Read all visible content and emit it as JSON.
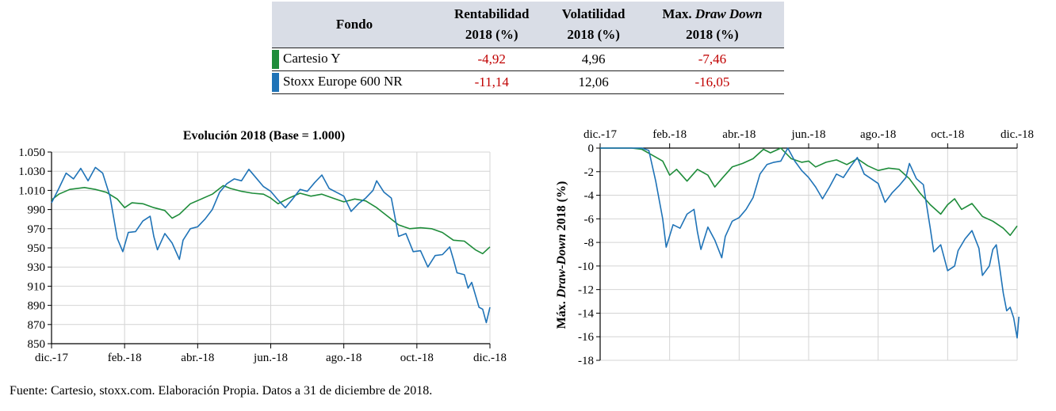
{
  "table": {
    "headers": {
      "fund": "Fondo",
      "return_l1": "Rentabilidad",
      "return_l2": "2018 (%)",
      "vol_l1": "Volatilidad",
      "vol_l2": "2018 (%)",
      "dd_l1a": "Max. ",
      "dd_l1b": "Draw Down",
      "dd_l2": "2018 (%)"
    },
    "rows": [
      {
        "fund": "Cartesio Y",
        "color": "#1e8c3a",
        "return": "-4,92",
        "volatility": "4,96",
        "max_drawdown": "-7,46"
      },
      {
        "fund": "Stoxx Europe 600 NR",
        "color": "#1f73b7",
        "return": "-11,14",
        "volatility": "12,06",
        "max_drawdown": "-16,05"
      }
    ]
  },
  "source_note": "Fuente: Cartesio, stoxx.com. Elaboración Propia. Datos a 31 de diciembre de 2018.",
  "chart_data": [
    {
      "type": "line",
      "title": "Evolución  2018 (Base = 1.000)",
      "xlabel": "",
      "ylabel": "",
      "ylim": [
        850,
        1050
      ],
      "yticks": [
        "850",
        "870",
        "890",
        "910",
        "930",
        "950",
        "970",
        "990",
        "1.010",
        "1.030",
        "1.050"
      ],
      "xlim": [
        0,
        12
      ],
      "xticks": [
        "dic.-17",
        "feb.-18",
        "abr.-18",
        "jun.-18",
        "ago.-18",
        "oct.-18",
        "dic.-18"
      ],
      "grid": true,
      "series": [
        {
          "name": "Cartesio Y",
          "color": "#1e8c3a",
          "points": [
            [
              0,
              1000
            ],
            [
              0.2,
              1006
            ],
            [
              0.5,
              1011
            ],
            [
              0.9,
              1013
            ],
            [
              1.2,
              1011
            ],
            [
              1.5,
              1008
            ],
            [
              1.8,
              1001
            ],
            [
              2.0,
              992
            ],
            [
              2.2,
              997
            ],
            [
              2.5,
              996
            ],
            [
              2.8,
              992
            ],
            [
              3.1,
              989
            ],
            [
              3.3,
              981
            ],
            [
              3.5,
              985
            ],
            [
              3.8,
              996
            ],
            [
              4.1,
              1001
            ],
            [
              4.4,
              1006
            ],
            [
              4.7,
              1015
            ],
            [
              4.9,
              1012
            ],
            [
              5.2,
              1009
            ],
            [
              5.5,
              1007
            ],
            [
              5.8,
              1006
            ],
            [
              6.0,
              1002
            ],
            [
              6.2,
              996
            ],
            [
              6.5,
              1002
            ],
            [
              6.8,
              1007
            ],
            [
              7.1,
              1004
            ],
            [
              7.4,
              1006
            ],
            [
              7.7,
              1002
            ],
            [
              8.0,
              998
            ],
            [
              8.3,
              1001
            ],
            [
              8.6,
              999
            ],
            [
              8.9,
              992
            ],
            [
              9.2,
              983
            ],
            [
              9.5,
              974
            ],
            [
              9.8,
              970
            ],
            [
              10.1,
              971
            ],
            [
              10.4,
              970
            ],
            [
              10.7,
              966
            ],
            [
              11.0,
              958
            ],
            [
              11.3,
              957
            ],
            [
              11.6,
              948
            ],
            [
              11.8,
              944
            ],
            [
              12.0,
              951
            ]
          ]
        },
        {
          "name": "Stoxx Europe 600 NR",
          "color": "#1f73b7",
          "points": [
            [
              0,
              997
            ],
            [
              0.2,
              1012
            ],
            [
              0.4,
              1028
            ],
            [
              0.6,
              1022
            ],
            [
              0.8,
              1033
            ],
            [
              1.0,
              1020
            ],
            [
              1.2,
              1034
            ],
            [
              1.4,
              1028
            ],
            [
              1.6,
              1004
            ],
            [
              1.8,
              960
            ],
            [
              1.95,
              946
            ],
            [
              2.1,
              966
            ],
            [
              2.3,
              967
            ],
            [
              2.5,
              978
            ],
            [
              2.7,
              983
            ],
            [
              2.8,
              962
            ],
            [
              2.9,
              948
            ],
            [
              3.1,
              965
            ],
            [
              3.3,
              955
            ],
            [
              3.5,
              938
            ],
            [
              3.6,
              958
            ],
            [
              3.8,
              970
            ],
            [
              4.0,
              972
            ],
            [
              4.2,
              980
            ],
            [
              4.4,
              990
            ],
            [
              4.6,
              1008
            ],
            [
              4.8,
              1017
            ],
            [
              5.0,
              1022
            ],
            [
              5.2,
              1020
            ],
            [
              5.4,
              1032
            ],
            [
              5.6,
              1023
            ],
            [
              5.8,
              1014
            ],
            [
              6.0,
              1009
            ],
            [
              6.2,
              1000
            ],
            [
              6.4,
              992
            ],
            [
              6.6,
              1001
            ],
            [
              6.8,
              1011
            ],
            [
              7.0,
              1009
            ],
            [
              7.2,
              1018
            ],
            [
              7.4,
              1026
            ],
            [
              7.6,
              1012
            ],
            [
              7.8,
              1008
            ],
            [
              8.0,
              1004
            ],
            [
              8.2,
              988
            ],
            [
              8.4,
              996
            ],
            [
              8.6,
              1002
            ],
            [
              8.8,
              1010
            ],
            [
              8.9,
              1020
            ],
            [
              9.1,
              1008
            ],
            [
              9.3,
              1002
            ],
            [
              9.5,
              962
            ],
            [
              9.7,
              965
            ],
            [
              9.9,
              946
            ],
            [
              10.1,
              947
            ],
            [
              10.3,
              930
            ],
            [
              10.5,
              942
            ],
            [
              10.7,
              943
            ],
            [
              10.9,
              951
            ],
            [
              11.0,
              938
            ],
            [
              11.1,
              924
            ],
            [
              11.3,
              922
            ],
            [
              11.4,
              908
            ],
            [
              11.5,
              914
            ],
            [
              11.7,
              888
            ],
            [
              11.8,
              886
            ],
            [
              11.9,
              872
            ],
            [
              12.0,
              888
            ]
          ]
        }
      ]
    },
    {
      "type": "line",
      "title": "",
      "xlabel": "",
      "ylabel_a": "Máx. ",
      "ylabel_b": "Draw-Down",
      "ylabel_c": " 2018 (%)",
      "ylim": [
        -18,
        0
      ],
      "yticks": [
        "0",
        "-2",
        "-4",
        "-6",
        "-8",
        "-10",
        "-12",
        "-14",
        "-16",
        "-18"
      ],
      "xlim": [
        0,
        12
      ],
      "xticks": [
        "dic.-17",
        "feb.-18",
        "abr.-18",
        "jun.-18",
        "ago.-18",
        "oct.-18",
        "dic.-18"
      ],
      "xaxis_position": "top",
      "grid": true,
      "series": [
        {
          "name": "Cartesio Y",
          "color": "#1e8c3a",
          "points": [
            [
              0,
              0
            ],
            [
              0.5,
              0
            ],
            [
              0.9,
              0
            ],
            [
              1.2,
              -0.1
            ],
            [
              1.5,
              -0.6
            ],
            [
              1.8,
              -1.1
            ],
            [
              2.0,
              -2.3
            ],
            [
              2.2,
              -1.8
            ],
            [
              2.5,
              -2.8
            ],
            [
              2.8,
              -1.8
            ],
            [
              3.1,
              -2.3
            ],
            [
              3.3,
              -3.3
            ],
            [
              3.5,
              -2.6
            ],
            [
              3.8,
              -1.6
            ],
            [
              4.1,
              -1.3
            ],
            [
              4.4,
              -0.9
            ],
            [
              4.7,
              -0.1
            ],
            [
              4.9,
              -0.4
            ],
            [
              5.2,
              0
            ],
            [
              5.5,
              -0.9
            ],
            [
              5.8,
              -1.2
            ],
            [
              6.0,
              -1.1
            ],
            [
              6.2,
              -1.6
            ],
            [
              6.5,
              -1.2
            ],
            [
              6.8,
              -1.0
            ],
            [
              7.1,
              -1.4
            ],
            [
              7.4,
              -0.9
            ],
            [
              7.7,
              -1.5
            ],
            [
              8.0,
              -1.9
            ],
            [
              8.3,
              -1.7
            ],
            [
              8.6,
              -1.8
            ],
            [
              8.9,
              -2.6
            ],
            [
              9.2,
              -3.8
            ],
            [
              9.5,
              -4.8
            ],
            [
              9.8,
              -5.6
            ],
            [
              10.0,
              -4.8
            ],
            [
              10.2,
              -4.3
            ],
            [
              10.4,
              -5.2
            ],
            [
              10.7,
              -4.7
            ],
            [
              11.0,
              -5.8
            ],
            [
              11.3,
              -6.2
            ],
            [
              11.6,
              -6.8
            ],
            [
              11.8,
              -7.4
            ],
            [
              12.0,
              -6.6
            ]
          ]
        },
        {
          "name": "Stoxx Europe 600 NR",
          "color": "#1f73b7",
          "points": [
            [
              0,
              0
            ],
            [
              0.5,
              0
            ],
            [
              0.9,
              0
            ],
            [
              1.2,
              0
            ],
            [
              1.4,
              -0.2
            ],
            [
              1.6,
              -2.8
            ],
            [
              1.8,
              -6.0
            ],
            [
              1.9,
              -8.4
            ],
            [
              2.1,
              -6.5
            ],
            [
              2.3,
              -6.8
            ],
            [
              2.5,
              -5.6
            ],
            [
              2.7,
              -5.2
            ],
            [
              2.8,
              -7.1
            ],
            [
              2.9,
              -8.6
            ],
            [
              3.1,
              -6.7
            ],
            [
              3.3,
              -7.8
            ],
            [
              3.5,
              -9.3
            ],
            [
              3.6,
              -7.5
            ],
            [
              3.8,
              -6.2
            ],
            [
              4.0,
              -5.9
            ],
            [
              4.2,
              -5.2
            ],
            [
              4.4,
              -4.2
            ],
            [
              4.6,
              -2.2
            ],
            [
              4.8,
              -1.4
            ],
            [
              5.0,
              -1.2
            ],
            [
              5.2,
              -1.1
            ],
            [
              5.4,
              0
            ],
            [
              5.6,
              -1.1
            ],
            [
              5.8,
              -1.9
            ],
            [
              6.0,
              -2.5
            ],
            [
              6.2,
              -3.3
            ],
            [
              6.4,
              -4.3
            ],
            [
              6.6,
              -3.3
            ],
            [
              6.8,
              -2.2
            ],
            [
              7.0,
              -2.5
            ],
            [
              7.2,
              -1.6
            ],
            [
              7.4,
              -0.8
            ],
            [
              7.6,
              -2.2
            ],
            [
              7.8,
              -2.6
            ],
            [
              8.0,
              -3.0
            ],
            [
              8.2,
              -4.6
            ],
            [
              8.4,
              -3.8
            ],
            [
              8.6,
              -3.2
            ],
            [
              8.8,
              -2.5
            ],
            [
              8.9,
              -1.3
            ],
            [
              9.1,
              -2.6
            ],
            [
              9.3,
              -3.1
            ],
            [
              9.5,
              -6.8
            ],
            [
              9.6,
              -8.8
            ],
            [
              9.8,
              -8.2
            ],
            [
              10.0,
              -10.4
            ],
            [
              10.2,
              -10.0
            ],
            [
              10.3,
              -8.7
            ],
            [
              10.5,
              -7.7
            ],
            [
              10.7,
              -7.0
            ],
            [
              10.9,
              -8.5
            ],
            [
              11.0,
              -10.8
            ],
            [
              11.2,
              -10.0
            ],
            [
              11.3,
              -8.6
            ],
            [
              11.4,
              -8.2
            ],
            [
              11.5,
              -10.2
            ],
            [
              11.6,
              -12.3
            ],
            [
              11.7,
              -13.8
            ],
            [
              11.8,
              -13.5
            ],
            [
              11.9,
              -14.4
            ],
            [
              12.0,
              -16.1
            ],
            [
              12.05,
              -14.3
            ]
          ]
        }
      ]
    }
  ]
}
